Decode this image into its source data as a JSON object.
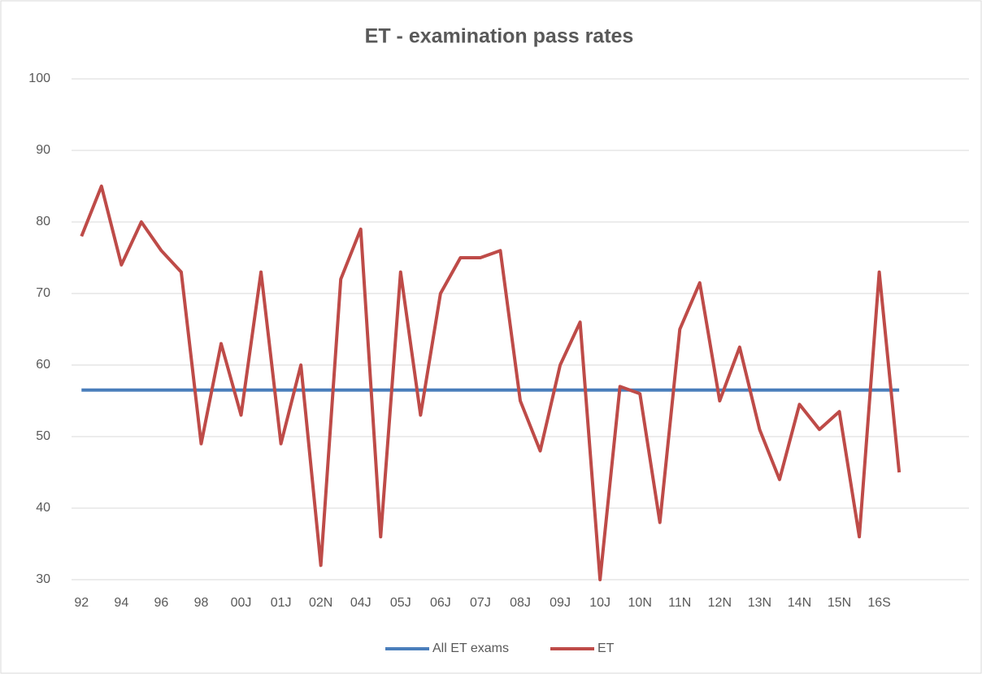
{
  "chart_data": {
    "type": "line",
    "title": "ET - examination pass rates",
    "categories": [
      "92",
      null,
      "94",
      null,
      "96",
      null,
      "98",
      null,
      "00J",
      null,
      "01J",
      null,
      "02N",
      null,
      "04J",
      null,
      "05J",
      null,
      "06J",
      null,
      "07J",
      null,
      "08J",
      null,
      "09J",
      null,
      "10J",
      null,
      "10N",
      null,
      "11N",
      null,
      "12N",
      null,
      "13N",
      null,
      "14N",
      null,
      "15N",
      null,
      "16S",
      null,
      null,
      null,
      null
    ],
    "series": [
      {
        "name": "All ET exams",
        "color": "#4a7ebb",
        "values": [
          56.5,
          56.5,
          56.5,
          56.5,
          56.5,
          56.5,
          56.5,
          56.5,
          56.5,
          56.5,
          56.5,
          56.5,
          56.5,
          56.5,
          56.5,
          56.5,
          56.5,
          56.5,
          56.5,
          56.5,
          56.5,
          56.5,
          56.5,
          56.5,
          56.5,
          56.5,
          56.5,
          56.5,
          56.5,
          56.5,
          56.5,
          56.5,
          56.5,
          56.5,
          56.5,
          56.5,
          56.5,
          56.5,
          56.5,
          56.5,
          56.5,
          56.5,
          null,
          null,
          null
        ]
      },
      {
        "name": "ET",
        "color": "#be4b48",
        "values": [
          78,
          85,
          74,
          80,
          76,
          73,
          49,
          63,
          53,
          73,
          49,
          60,
          32,
          72,
          79,
          36,
          73,
          53,
          70,
          75,
          75,
          76,
          55,
          48,
          60,
          66,
          30,
          57,
          56,
          38,
          65,
          71.5,
          55,
          62.5,
          51,
          44,
          54.5,
          51,
          53.5,
          36,
          73,
          45,
          null,
          null,
          null
        ]
      }
    ],
    "ylim": [
      30,
      100
    ],
    "yticks": [
      30,
      40,
      50,
      60,
      70,
      80,
      90,
      100
    ],
    "grid": true,
    "legend": "bottom"
  }
}
